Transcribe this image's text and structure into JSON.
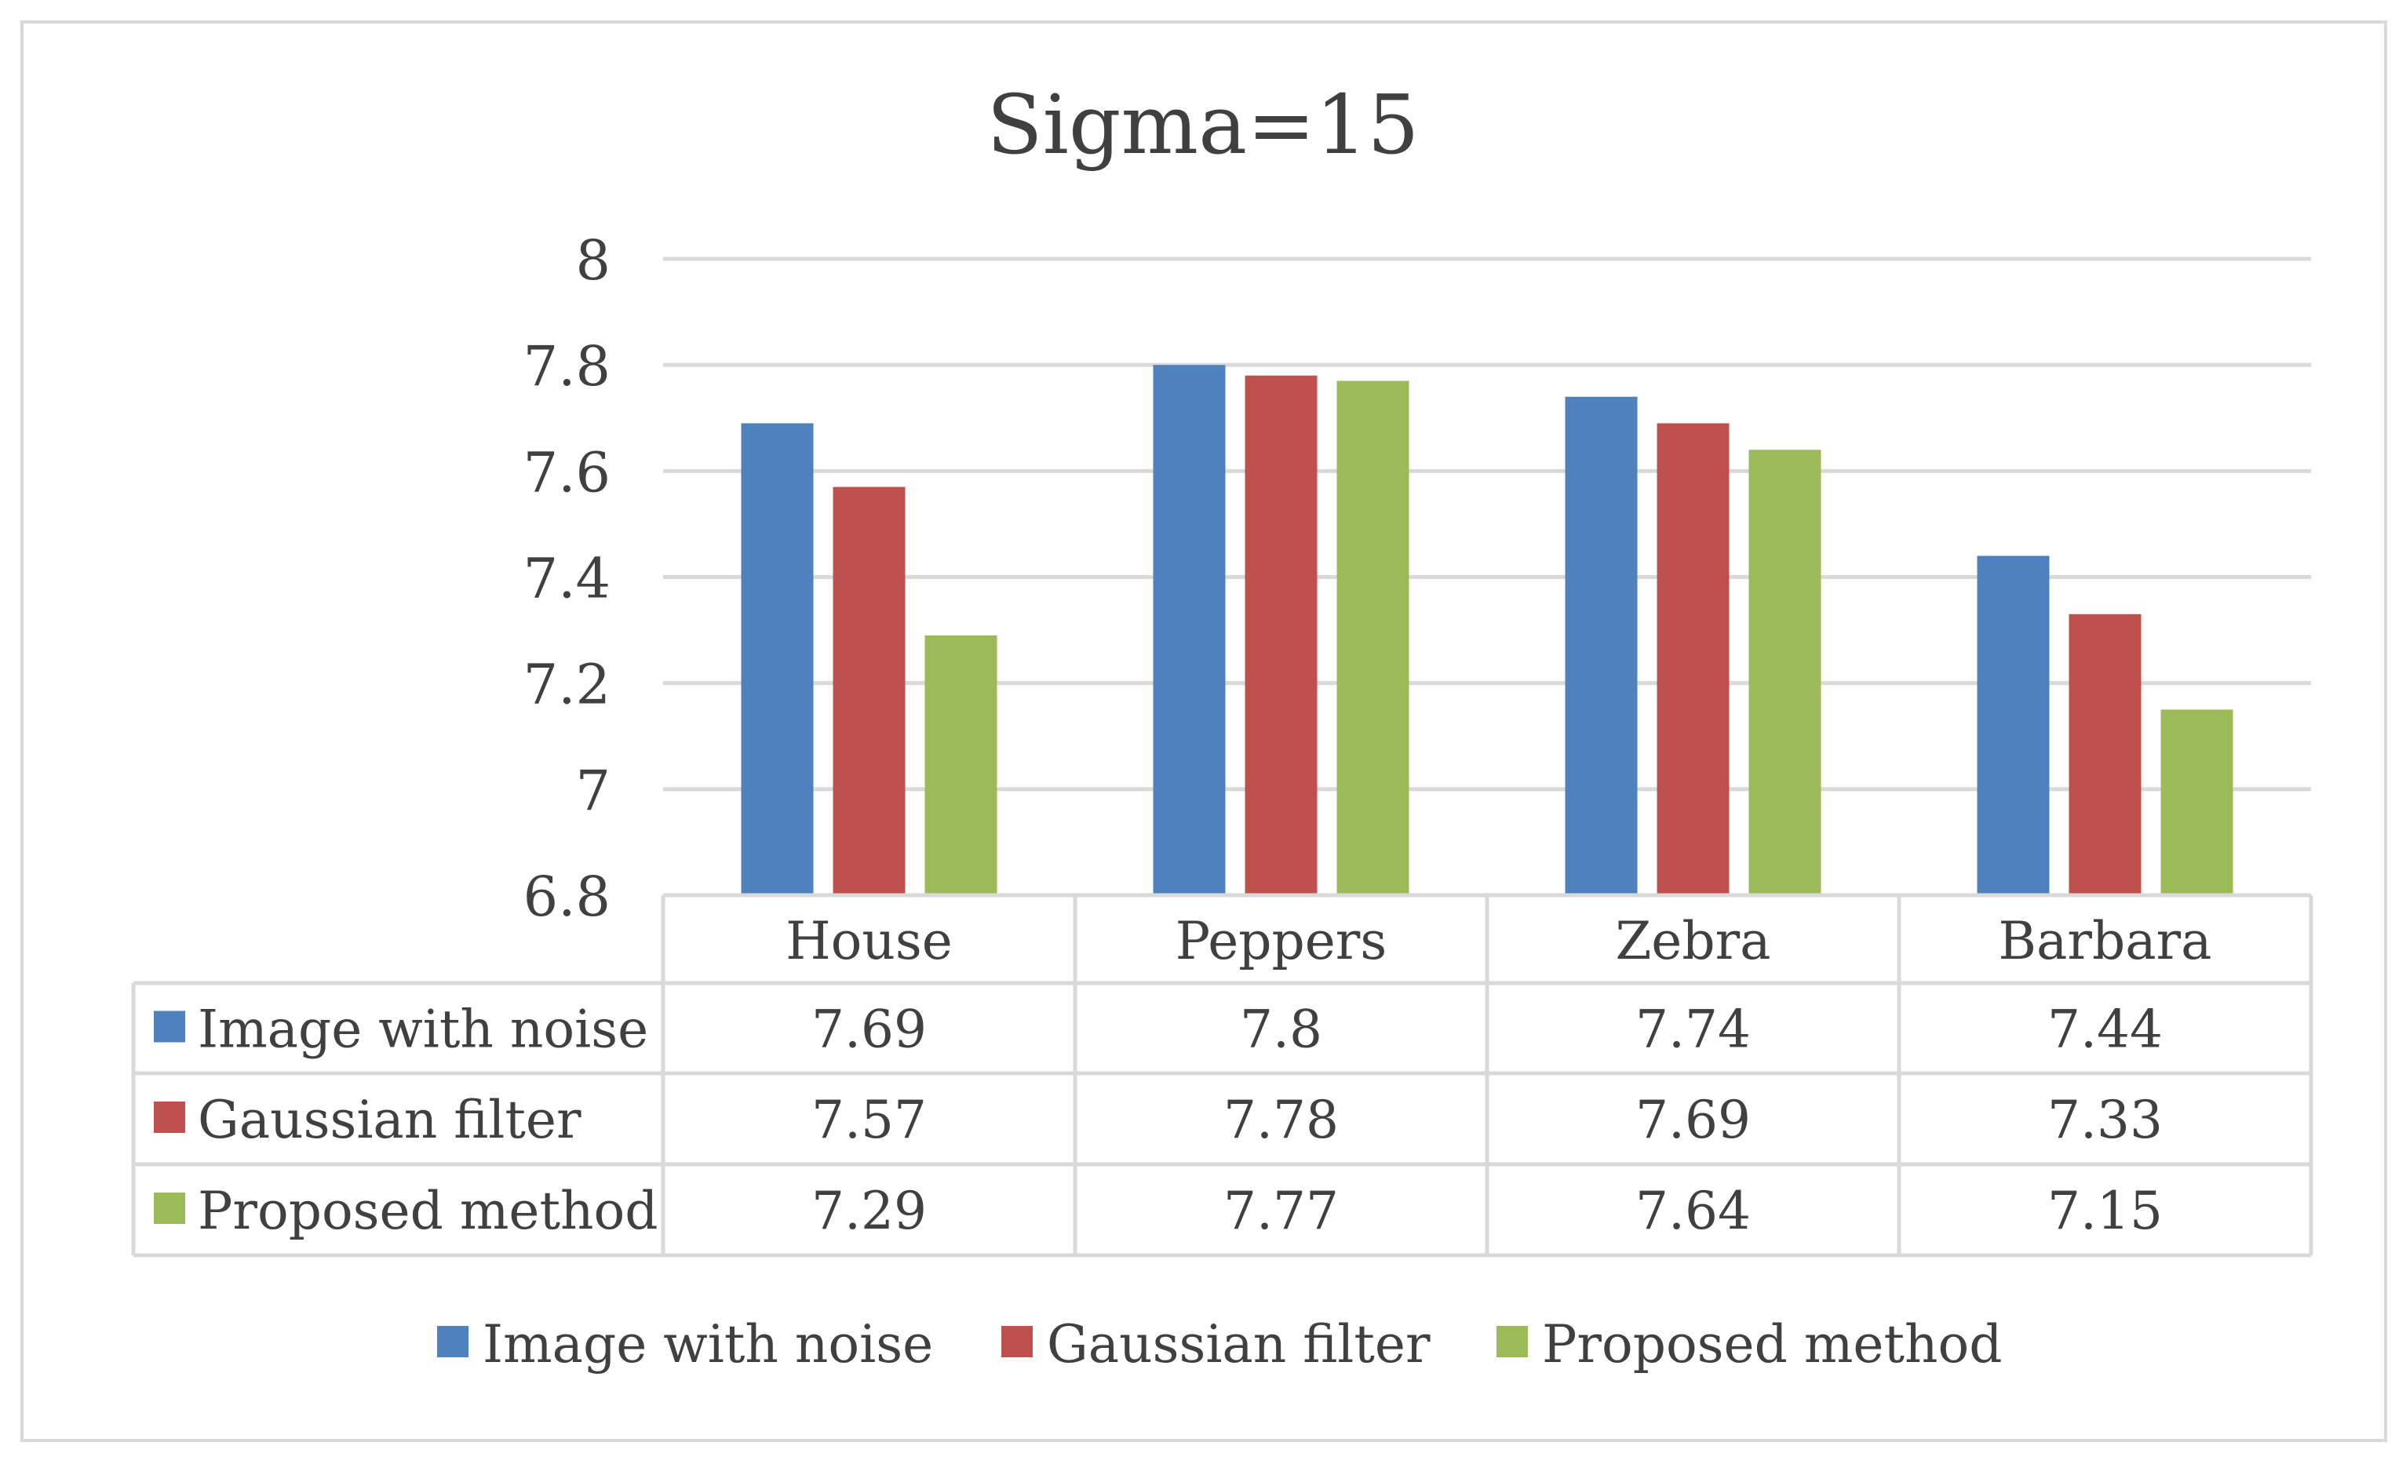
{
  "chart_data": {
    "type": "bar",
    "title": "Sigma=15",
    "xlabel": "",
    "ylabel": "",
    "ylim": [
      6.8,
      8
    ],
    "yticks": [
      "8",
      "7.8",
      "7.6",
      "7.4",
      "7.2",
      "7",
      "6.8"
    ],
    "ytick_values": [
      8,
      7.8,
      7.6,
      7.4,
      7.2,
      7,
      6.8
    ],
    "categories": [
      "House",
      "Peppers",
      "Zebra",
      "Barbara"
    ],
    "series": [
      {
        "name": "Image with noise",
        "color": "#4f81bd",
        "values": [
          7.69,
          7.8,
          7.74,
          7.44
        ],
        "labels": [
          "7.69",
          "7.8",
          "7.74",
          "7.44"
        ]
      },
      {
        "name": "Gaussian filter",
        "color": "#c0504d",
        "values": [
          7.57,
          7.78,
          7.69,
          7.33
        ],
        "labels": [
          "7.57",
          "7.78",
          "7.69",
          "7.33"
        ]
      },
      {
        "name": "Proposed method",
        "color": "#9bbb59",
        "values": [
          7.29,
          7.77,
          7.64,
          7.15
        ],
        "labels": [
          "7.29",
          "7.77",
          "7.64",
          "7.15"
        ]
      }
    ],
    "grid": true,
    "data_table": true,
    "legend_position": "bottom",
    "gridline_color": "#d9d9d9",
    "border_color": "#d9d9d9"
  }
}
